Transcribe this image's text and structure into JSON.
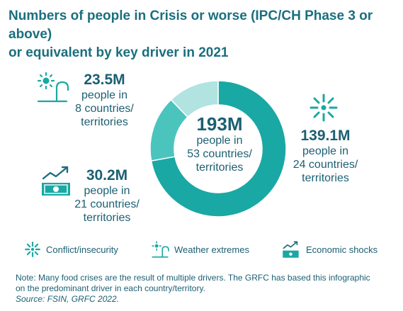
{
  "title_lines": [
    "Numbers of people in Crisis or worse (IPC/CH Phase 3 or above)",
    "or equivalent by key driver in 2021"
  ],
  "chart_data": {
    "type": "pie",
    "donut": true,
    "categories": [
      "Conflict/insecurity",
      "Economic shocks",
      "Weather extremes"
    ],
    "values": [
      139.1,
      30.2,
      23.5
    ],
    "total": {
      "value": "193M",
      "line1": "people in",
      "line2": "53 countries/",
      "line3": "territories"
    },
    "colors": [
      "#1aa8a4",
      "#4cc4be",
      "#b1e3e0"
    ]
  },
  "stats": {
    "weather": {
      "value": "23.5M",
      "line1": "people in",
      "line2": "8 countries/",
      "line3": "territories"
    },
    "economic": {
      "value": "30.2M",
      "line1": "people in",
      "line2": "21 countries/",
      "line3": "territories"
    },
    "conflict": {
      "value": "139.1M",
      "line1": "people in",
      "line2": "24 countries/",
      "line3": "territories"
    }
  },
  "legend": [
    {
      "label": "Conflict/insecurity",
      "icon": "conflict-icon"
    },
    {
      "label": "Weather extremes",
      "icon": "weather-icon"
    },
    {
      "label": "Economic shocks",
      "icon": "economic-icon"
    }
  ],
  "note": {
    "line1": "Note: Many food crises are the result of multiple drivers. The GRFC has based this infographic",
    "line2": "on the predominant driver in each country/territory.",
    "source": "Source: FSIN, GRFC 2022."
  }
}
